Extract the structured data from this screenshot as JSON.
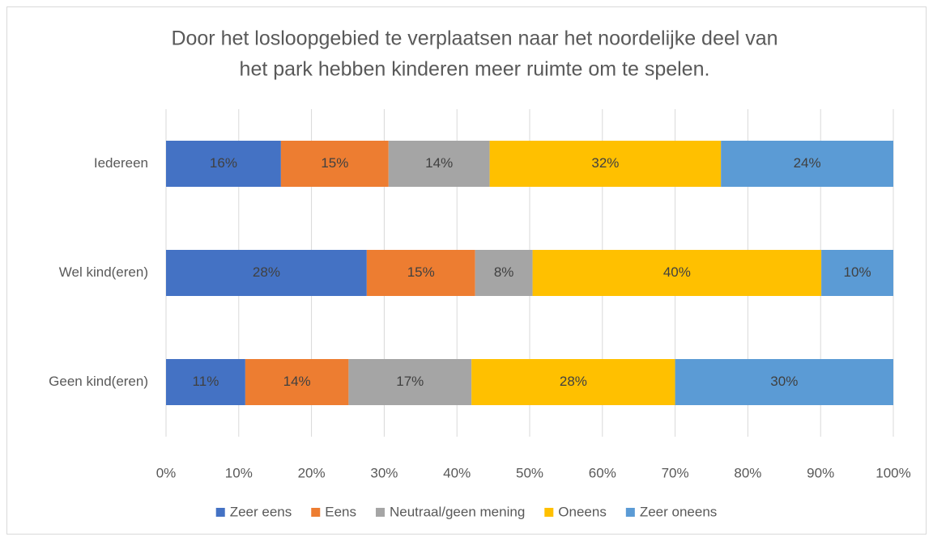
{
  "chart_data": {
    "type": "stacked-barh",
    "title": [
      "Door het losloopgebied te verplaatsen naar het noordelijke deel van",
      "het park hebben kinderen meer ruimte om te spelen."
    ],
    "categories": [
      "Iedereen",
      "Wel kind(eren)",
      "Geen kind(eren)"
    ],
    "series": [
      {
        "name": "Zeer eens",
        "color": "#4472c4",
        "values": [
          15.8,
          27.6,
          10.9
        ],
        "value_labels": [
          "16%",
          "28%",
          "11%"
        ]
      },
      {
        "name": "Eens",
        "color": "#ed7d31",
        "values": [
          14.8,
          14.9,
          14.2
        ],
        "value_labels": [
          "15%",
          "15%",
          "14%"
        ]
      },
      {
        "name": "Neutraal/geen mening",
        "color": "#a5a5a5",
        "values": [
          13.9,
          7.9,
          16.9
        ],
        "value_labels": [
          "14%",
          "8%",
          "17%"
        ]
      },
      {
        "name": "Oneens",
        "color": "#ffc000",
        "values": [
          31.8,
          39.7,
          28.0
        ],
        "value_labels": [
          "32%",
          "40%",
          "28%"
        ]
      },
      {
        "name": "Zeer oneens",
        "color": "#5b9bd5",
        "values": [
          23.7,
          9.9,
          30.0
        ],
        "value_labels": [
          "24%",
          "10%",
          "30%"
        ]
      }
    ],
    "xlim": [
      0,
      100
    ],
    "xticks": [
      {
        "value": 0,
        "label": "0%"
      },
      {
        "value": 10,
        "label": "10%"
      },
      {
        "value": 20,
        "label": "20%"
      },
      {
        "value": 30,
        "label": "30%"
      },
      {
        "value": 40,
        "label": "40%"
      },
      {
        "value": 50,
        "label": "50%"
      },
      {
        "value": 60,
        "label": "60%"
      },
      {
        "value": 70,
        "label": "70%"
      },
      {
        "value": 80,
        "label": "80%"
      },
      {
        "value": 90,
        "label": "90%"
      },
      {
        "value": 100,
        "label": "100%"
      }
    ],
    "grid": true,
    "legend": "bottom"
  }
}
